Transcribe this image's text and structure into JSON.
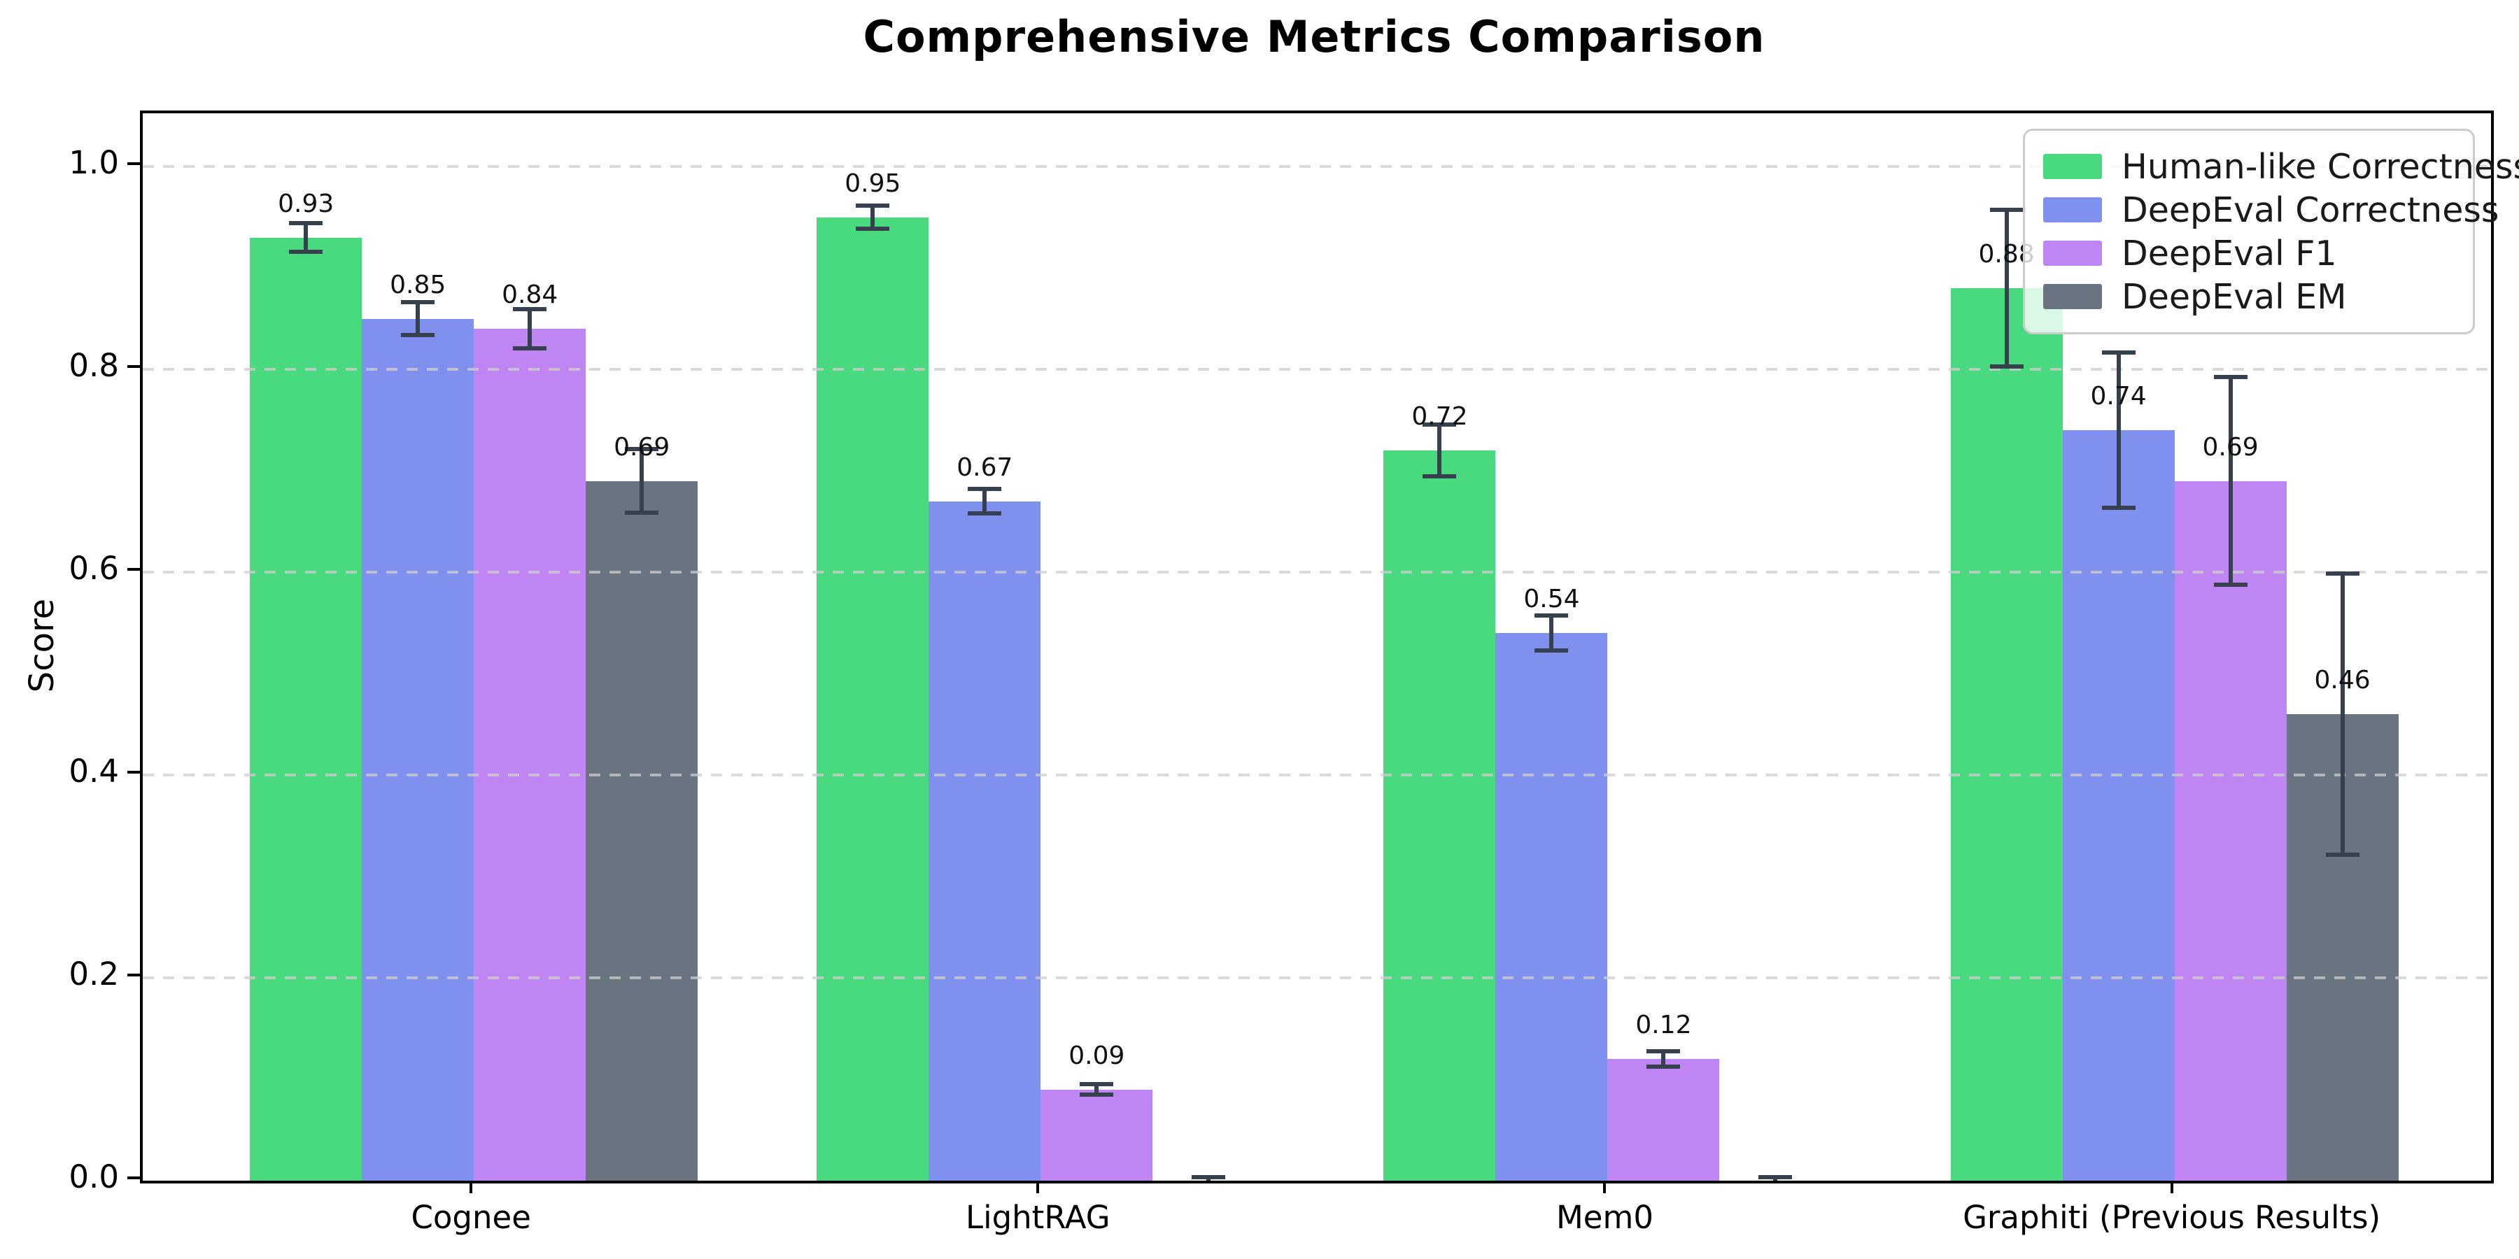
{
  "title": "Comprehensive Metrics Comparison",
  "chart_data": {
    "type": "bar",
    "title": "Comprehensive Metrics Comparison",
    "xlabel": "",
    "ylabel": "Score",
    "ylim": [
      0,
      1.05
    ],
    "yticks": [
      0.0,
      0.2,
      0.4,
      0.6,
      0.8,
      1.0
    ],
    "ytick_labels": [
      "0.0",
      "0.2",
      "0.4",
      "0.6",
      "0.8",
      "1.0"
    ],
    "grid": "horizontal-dashed-above-bars",
    "legend_position": "upper-right",
    "categories": [
      "Cognee",
      "LightRAG",
      "Mem0",
      "Graphiti (Previous Results)"
    ],
    "series": [
      {
        "name": "Human-like Correctness",
        "color": "#49d97f",
        "values": [
          0.93,
          0.95,
          0.72,
          0.88
        ],
        "errors": [
          0.015,
          0.012,
          0.026,
          0.078
        ]
      },
      {
        "name": "DeepEval Correctness",
        "color": "#8090ef",
        "values": [
          0.85,
          0.67,
          0.54,
          0.74
        ],
        "errors": [
          0.017,
          0.013,
          0.018,
          0.077
        ]
      },
      {
        "name": "DeepEval F1",
        "color": "#bf85f2",
        "values": [
          0.84,
          0.09,
          0.12,
          0.69
        ],
        "errors": [
          0.02,
          0.006,
          0.008,
          0.103
        ]
      },
      {
        "name": "DeepEval EM",
        "color": "#6a7380",
        "values": [
          0.69,
          0.0,
          0.0,
          0.46
        ],
        "errors": [
          0.032,
          0.004,
          0.004,
          0.139
        ]
      }
    ],
    "bar_value_labels_shown": [
      "0.93",
      "0.85",
      "0.84",
      "0.69",
      "0.95",
      "0.67",
      "0.09",
      "0.72",
      "0.54",
      "0.12",
      "0.88",
      "0.74",
      "0.69",
      "0.46"
    ],
    "value_label_decimals": 2,
    "error_bar_color": "#36404f"
  }
}
